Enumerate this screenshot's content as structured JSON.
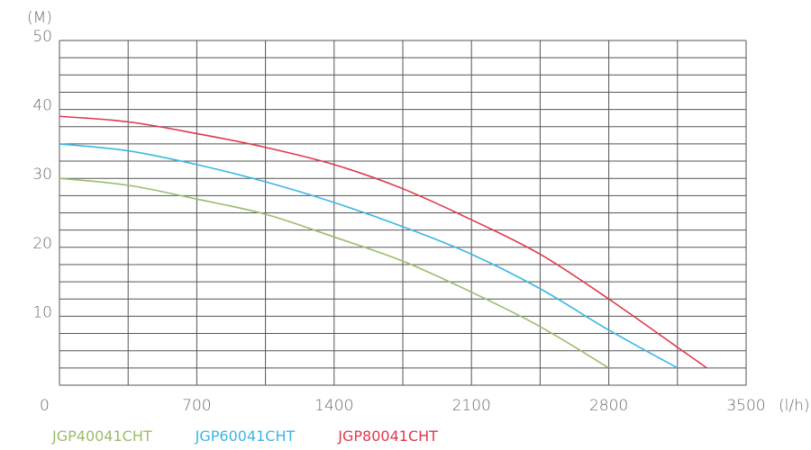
{
  "chart_data": {
    "type": "line",
    "title": "",
    "xlabel": "(l/h)",
    "ylabel": "(M)",
    "xlim": [
      0,
      3500
    ],
    "ylim": [
      0,
      50
    ],
    "x_ticks": [
      0,
      700,
      1400,
      2100,
      2800,
      3500
    ],
    "x_tick_labels": [
      "0",
      "700",
      "1400",
      "2100",
      "2800",
      "3500"
    ],
    "y_ticks": [
      10,
      20,
      30,
      40,
      50
    ],
    "y_tick_labels": [
      "10",
      "20",
      "30",
      "40",
      "50"
    ],
    "grid": true,
    "legend_position": "bottom-left",
    "series": [
      {
        "name": "JGP40041CHT",
        "color": "#9cbc6c",
        "x": [
          0,
          350,
          700,
          1050,
          1400,
          1750,
          2100,
          2450,
          2800
        ],
        "y": [
          30.0,
          29.0,
          27.0,
          24.8,
          21.5,
          18.0,
          13.5,
          8.5,
          2.5
        ]
      },
      {
        "name": "JGP60041CHT",
        "color": "#3bb6e6",
        "x": [
          0,
          350,
          700,
          1050,
          1400,
          1750,
          2100,
          2450,
          2800,
          3150
        ],
        "y": [
          35.0,
          34.0,
          32.0,
          29.5,
          26.5,
          23.0,
          19.0,
          14.0,
          8.0,
          2.5
        ]
      },
      {
        "name": "JGP80041CHT",
        "color": "#e0384a",
        "x": [
          0,
          350,
          700,
          1050,
          1400,
          1750,
          2100,
          2450,
          2800,
          3150,
          3300
        ],
        "y": [
          39.0,
          38.2,
          36.5,
          34.5,
          32.0,
          28.5,
          24.0,
          19.0,
          12.5,
          5.5,
          2.5
        ]
      }
    ]
  }
}
